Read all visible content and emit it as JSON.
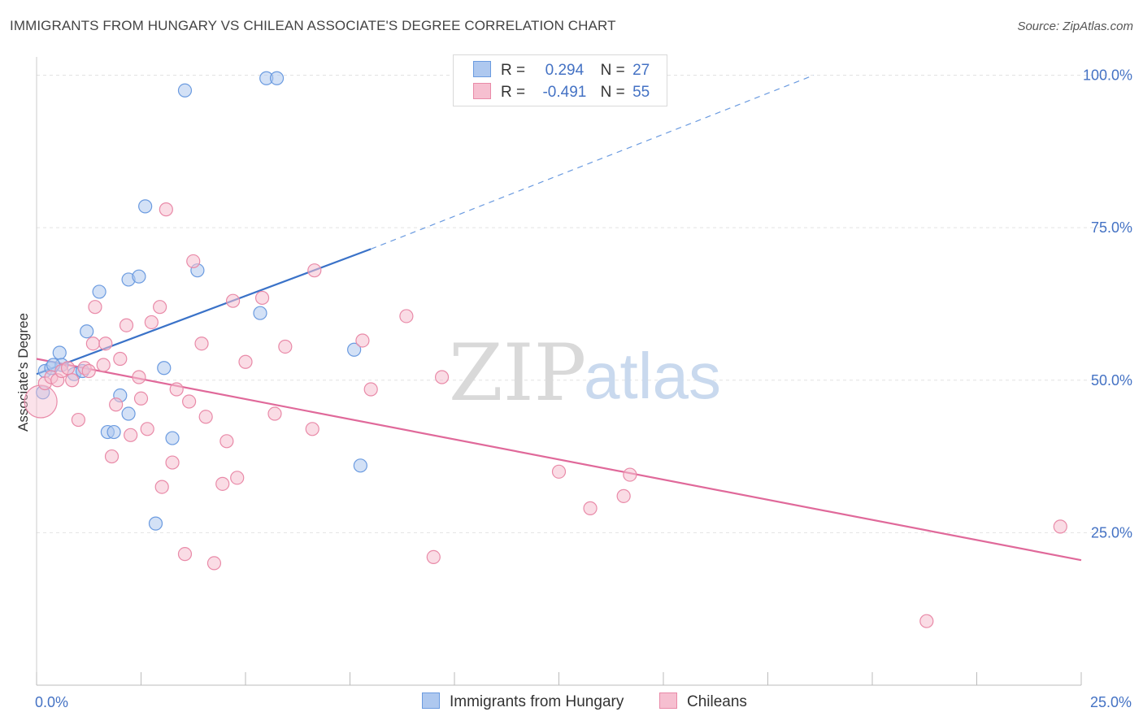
{
  "header": {
    "title": "IMMIGRANTS FROM HUNGARY VS CHILEAN ASSOCIATE'S DEGREE CORRELATION CHART",
    "source": "Source: ZipAtlas.com"
  },
  "watermark": {
    "zip": "ZIP",
    "atlas": "atlas"
  },
  "colors": {
    "blue_fill": "#aec8ef",
    "blue_stroke": "#6b9be0",
    "blue_line": "#3a72c8",
    "pink_fill": "#f6bfd0",
    "pink_stroke": "#e98aa8",
    "pink_line": "#e0699a",
    "accent_text": "#4472c4",
    "grid": "#e2e2e2"
  },
  "legend": {
    "rows": [
      {
        "r_label": "R =",
        "r_value": "0.294",
        "n_label": "N =",
        "n_value": "27"
      },
      {
        "r_label": "R =",
        "r_value": "-0.491",
        "n_label": "N =",
        "n_value": "55"
      }
    ],
    "bottom": [
      "Immigrants from Hungary",
      "Chileans"
    ]
  },
  "chart_data": {
    "type": "scatter",
    "title": "IMMIGRANTS FROM HUNGARY VS CHILEAN ASSOCIATE'S DEGREE CORRELATION CHART",
    "xlabel": "",
    "ylabel": "Associate's Degree",
    "xlim": [
      0,
      25
    ],
    "ylim": [
      0,
      103
    ],
    "x_ticks": [
      {
        "value": 0,
        "label": "0.0%"
      },
      {
        "value": 25,
        "label": "25.0%"
      }
    ],
    "y_ticks": [
      {
        "value": 25,
        "label": "25.0%"
      },
      {
        "value": 50,
        "label": "50.0%"
      },
      {
        "value": 75,
        "label": "75.0%"
      },
      {
        "value": 100,
        "label": "100.0%"
      }
    ],
    "grid": true,
    "legend_position": "top-center",
    "series": [
      {
        "name": "Immigrants from Hungary",
        "color": "blue",
        "r": 0.294,
        "n": 27,
        "trend": {
          "x0": 0.0,
          "y0": 51.0,
          "x1": 8.0,
          "y1": 71.5,
          "x_dashed_end": 18.6,
          "y_dashed_end": 100.0
        },
        "points": [
          [
            0.2,
            51.5
          ],
          [
            0.35,
            52.0
          ],
          [
            0.55,
            54.5
          ],
          [
            0.6,
            52.5
          ],
          [
            0.9,
            51.0
          ],
          [
            1.1,
            51.5
          ],
          [
            1.2,
            58.0
          ],
          [
            1.5,
            64.5
          ],
          [
            1.7,
            41.5
          ],
          [
            1.85,
            41.5
          ],
          [
            2.0,
            47.5
          ],
          [
            2.2,
            44.5
          ],
          [
            2.2,
            66.5
          ],
          [
            2.45,
            67.0
          ],
          [
            2.6,
            78.5
          ],
          [
            2.85,
            26.5
          ],
          [
            3.05,
            52.0
          ],
          [
            3.25,
            40.5
          ],
          [
            3.55,
            97.5
          ],
          [
            3.85,
            68.0
          ],
          [
            5.35,
            61.0
          ],
          [
            5.5,
            99.5
          ],
          [
            5.75,
            99.5
          ],
          [
            7.6,
            55.0
          ],
          [
            7.75,
            36.0
          ],
          [
            0.15,
            48.0
          ],
          [
            0.4,
            52.5
          ]
        ]
      },
      {
        "name": "Chileans",
        "color": "pink",
        "r": -0.491,
        "n": 55,
        "trend": {
          "x0": 0.0,
          "y0": 53.5,
          "x1": 25.0,
          "y1": 20.5
        },
        "points": [
          [
            0.1,
            46.5
          ],
          [
            0.2,
            49.5
          ],
          [
            0.35,
            50.5
          ],
          [
            0.5,
            50.0
          ],
          [
            0.6,
            51.5
          ],
          [
            0.75,
            52.0
          ],
          [
            0.85,
            50.0
          ],
          [
            1.0,
            43.5
          ],
          [
            1.15,
            52.0
          ],
          [
            1.25,
            51.5
          ],
          [
            1.35,
            56.0
          ],
          [
            1.4,
            62.0
          ],
          [
            1.6,
            52.5
          ],
          [
            1.65,
            56.0
          ],
          [
            1.8,
            37.5
          ],
          [
            1.9,
            46.0
          ],
          [
            2.0,
            53.5
          ],
          [
            2.15,
            59.0
          ],
          [
            2.25,
            41.0
          ],
          [
            2.45,
            50.5
          ],
          [
            2.5,
            47.0
          ],
          [
            2.65,
            42.0
          ],
          [
            2.75,
            59.5
          ],
          [
            2.95,
            62.0
          ],
          [
            3.0,
            32.5
          ],
          [
            3.1,
            78.0
          ],
          [
            3.25,
            36.5
          ],
          [
            3.35,
            48.5
          ],
          [
            3.55,
            21.5
          ],
          [
            3.65,
            46.5
          ],
          [
            3.75,
            69.5
          ],
          [
            3.95,
            56.0
          ],
          [
            4.05,
            44.0
          ],
          [
            4.25,
            20.0
          ],
          [
            4.45,
            33.0
          ],
          [
            4.55,
            40.0
          ],
          [
            4.7,
            63.0
          ],
          [
            4.8,
            34.0
          ],
          [
            5.0,
            53.0
          ],
          [
            5.4,
            63.5
          ],
          [
            5.7,
            44.5
          ],
          [
            5.95,
            55.5
          ],
          [
            6.6,
            42.0
          ],
          [
            6.65,
            68.0
          ],
          [
            7.8,
            56.5
          ],
          [
            8.0,
            48.5
          ],
          [
            8.85,
            60.5
          ],
          [
            9.5,
            21.0
          ],
          [
            9.7,
            50.5
          ],
          [
            12.5,
            35.0
          ],
          [
            13.25,
            29.0
          ],
          [
            14.05,
            31.0
          ],
          [
            14.2,
            34.5
          ],
          [
            21.3,
            10.5
          ],
          [
            24.5,
            26.0
          ]
        ]
      }
    ]
  }
}
